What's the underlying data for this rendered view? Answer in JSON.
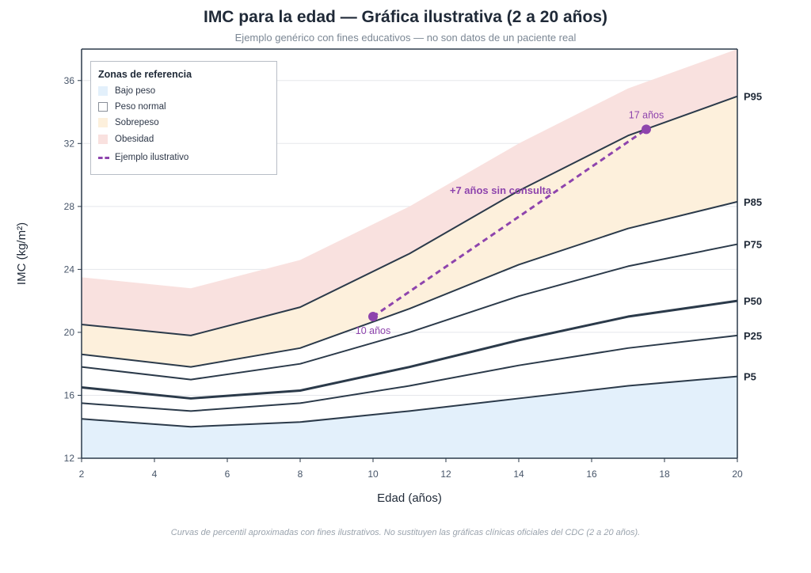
{
  "title": "IMC para la edad — Gráfica ilustrativa (2 a 20 años)",
  "subtitle": "Ejemplo genérico con fines educativos — no son datos de un paciente real",
  "footnote": "Curvas de percentil aproximadas con fines ilustrativos. No sustituyen las gráficas clínicas oficiales del CDC (2 a 20 años).",
  "legend": {
    "title": "Zonas de referencia",
    "items": [
      {
        "label": "Bajo peso",
        "color": "#e3f0fb"
      },
      {
        "label": "Peso normal",
        "color": "#ffffff"
      },
      {
        "label": "Sobrepeso",
        "color": "#fdf0dc"
      },
      {
        "label": "Obesidad",
        "color": "#f9e1df"
      }
    ],
    "example_label": "Ejemplo ilustrativo"
  },
  "colors": {
    "underweight": "#e3f0fb",
    "overweight": "#fdf0dc",
    "obese": "#f9e1df",
    "curve": "#2b3a4a",
    "example": "#8e44ad",
    "grid": "#e5e7eb",
    "axis": "#2b3a4a"
  },
  "chart_data": {
    "type": "line",
    "xlabel": "Edad (años)",
    "ylabel": "IMC (kg/m²)",
    "xlim": [
      2,
      20
    ],
    "ylim": [
      12,
      38
    ],
    "xticks": [
      2,
      4,
      6,
      8,
      10,
      12,
      14,
      16,
      18,
      20
    ],
    "yticks": [
      12,
      16,
      20,
      24,
      28,
      32,
      36
    ],
    "grid": "horizontal",
    "legend_position": "top-left",
    "x": [
      2,
      5,
      8,
      11,
      14,
      17,
      20
    ],
    "obesity_upper": [
      23.5,
      22.8,
      24.6,
      28.0,
      32.0,
      35.5,
      38.0
    ],
    "series": [
      {
        "name": "P5",
        "values": [
          14.5,
          14.0,
          14.3,
          15.0,
          15.8,
          16.6,
          17.2
        ]
      },
      {
        "name": "P25",
        "values": [
          15.5,
          15.0,
          15.5,
          16.6,
          17.9,
          19.0,
          19.8
        ]
      },
      {
        "name": "P50",
        "values": [
          16.5,
          15.8,
          16.3,
          17.8,
          19.5,
          21.0,
          22.0
        ],
        "emphasis": true
      },
      {
        "name": "P75",
        "values": [
          17.8,
          17.0,
          18.0,
          20.0,
          22.3,
          24.2,
          25.6
        ]
      },
      {
        "name": "P85",
        "values": [
          18.6,
          17.8,
          19.0,
          21.5,
          24.3,
          26.6,
          28.3
        ]
      },
      {
        "name": "P95",
        "values": [
          20.5,
          19.8,
          21.6,
          25.0,
          29.0,
          32.5,
          35.0
        ]
      }
    ],
    "example_points": [
      {
        "age": 10,
        "bmi": 21.0,
        "label": "10 años"
      },
      {
        "age": 17.5,
        "bmi": 32.9,
        "label": "17 años"
      }
    ],
    "example_annotation": "+7 años sin consulta"
  }
}
